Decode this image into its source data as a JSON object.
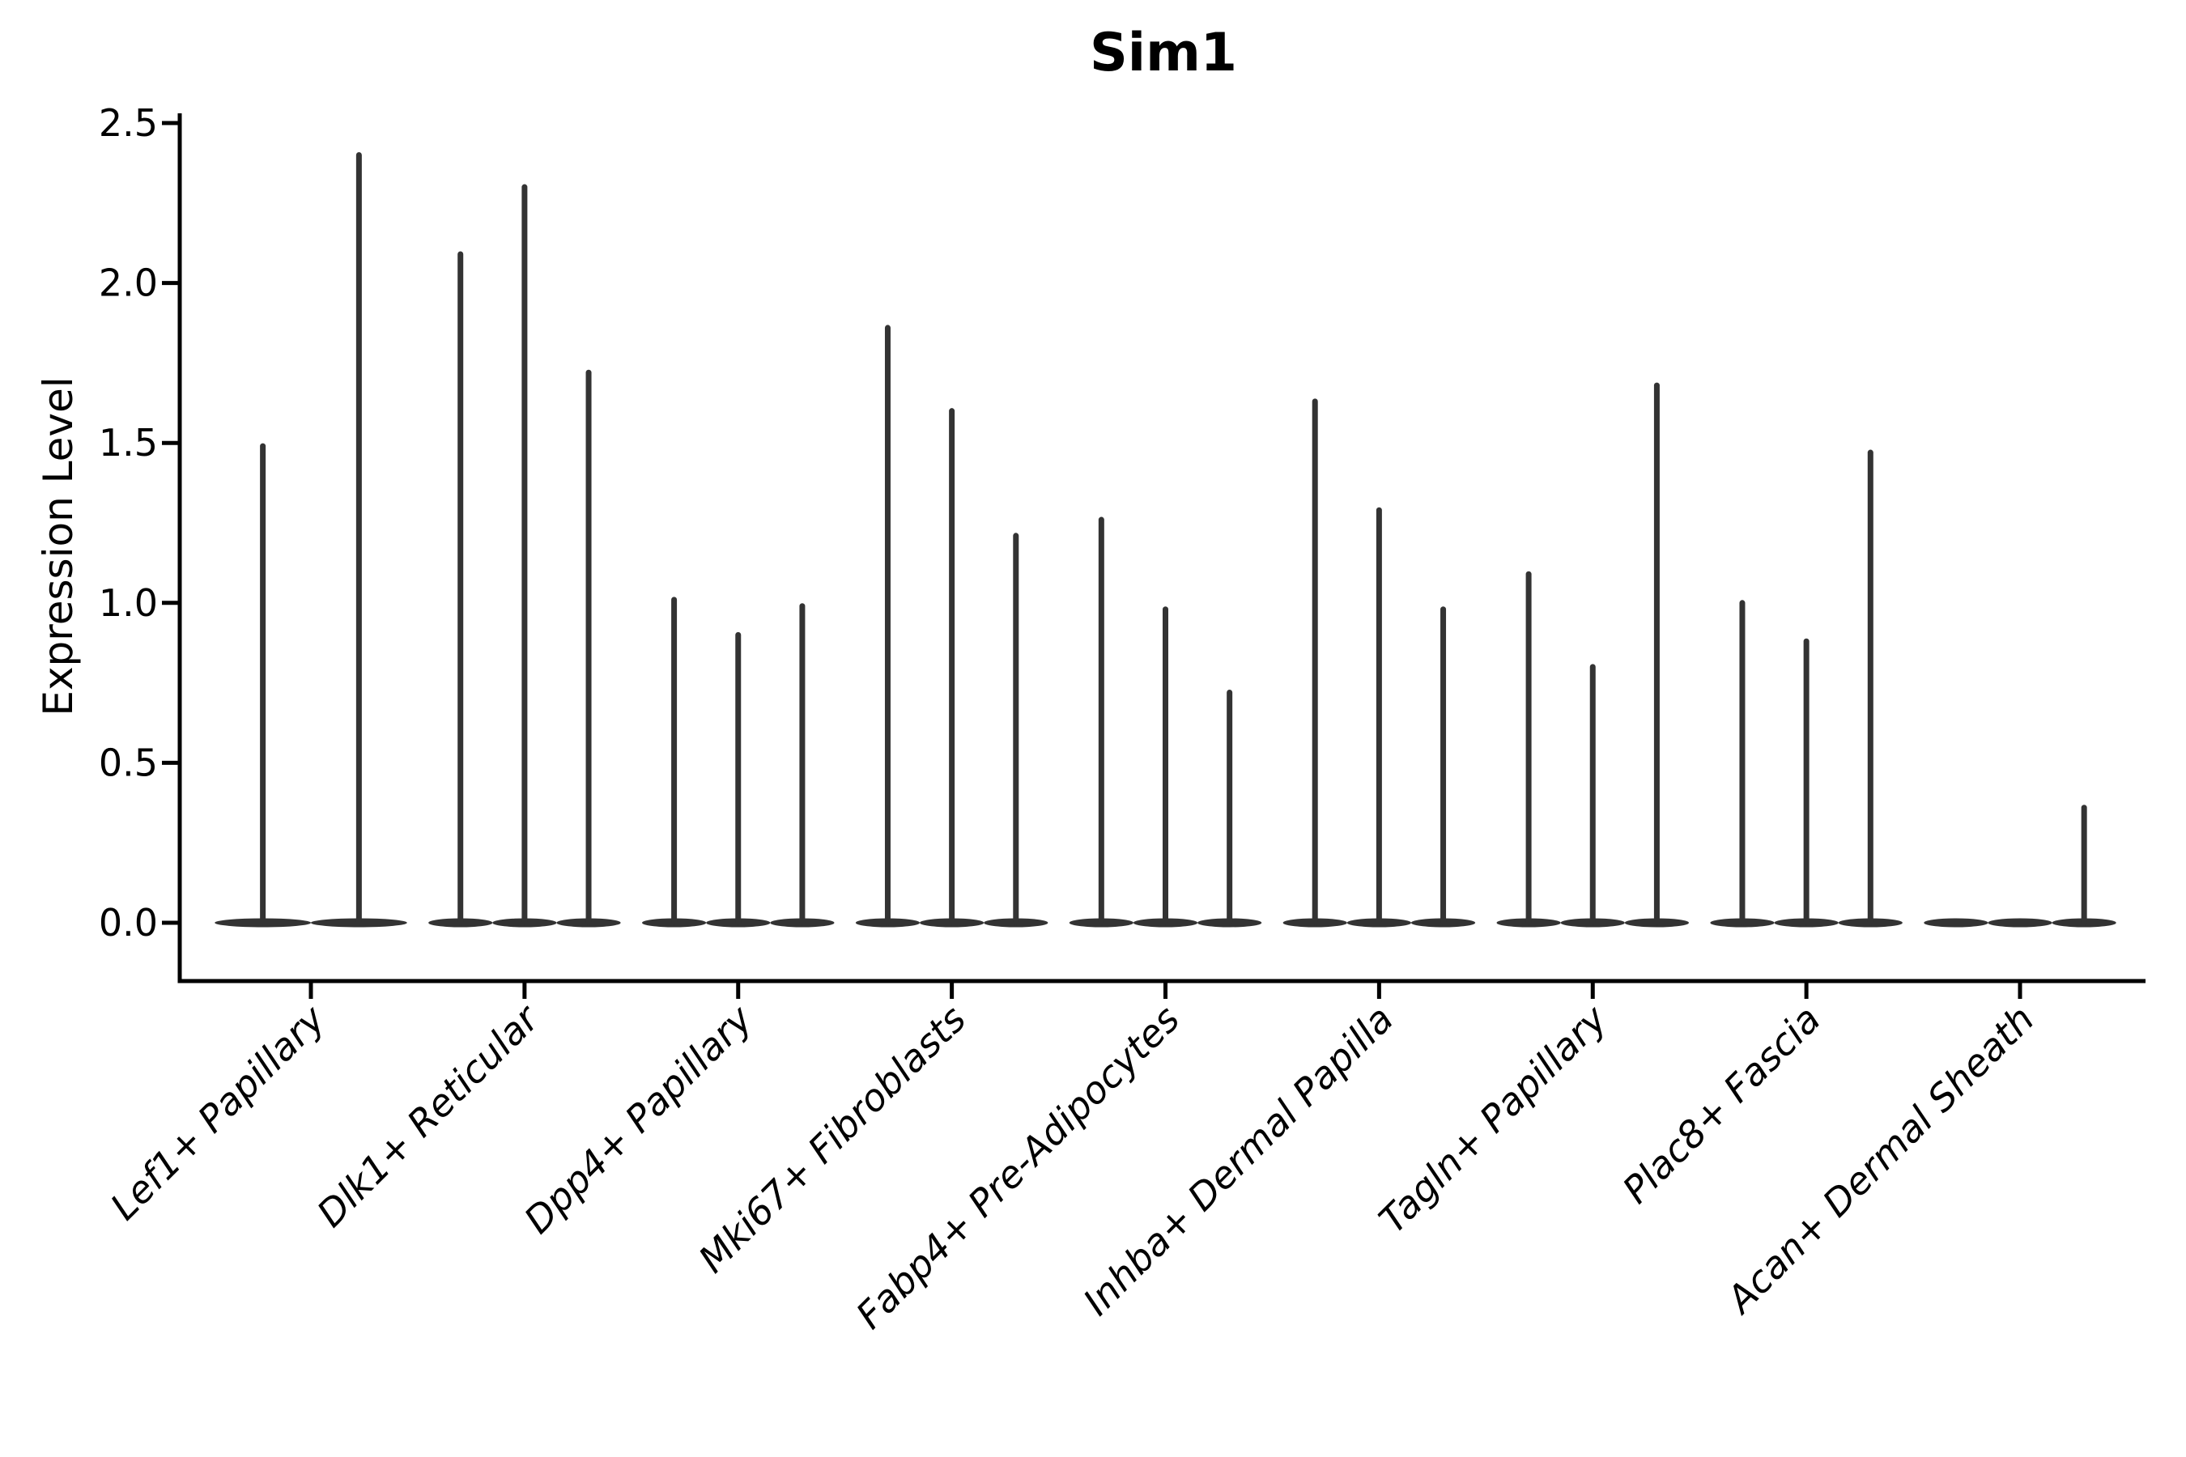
{
  "chart_data": {
    "type": "violin",
    "title": "Sim1",
    "xlabel": "",
    "ylabel": "Expression Level",
    "yticks": [
      "0.0",
      "0.5",
      "1.0",
      "1.5",
      "2.0",
      "2.5"
    ],
    "ytick_values": [
      0.0,
      0.5,
      1.0,
      1.5,
      2.0,
      2.5
    ],
    "ylim": [
      -0.18,
      2.56
    ],
    "grid": false,
    "legend": null,
    "violin_color": "#333333",
    "axis_color": "#000000",
    "categories": [
      "Lef1+ Papillary",
      "Dlk1+ Reticular",
      "Dpp4+ Papillary",
      "Mki67+ Fibroblasts",
      "Fabp4+ Pre-Adipocytes",
      "Inhba+ Dermal Papilla",
      "Tagln+ Papillary",
      "Plac8+ Fascia",
      "Acan+ Dermal Sheath"
    ],
    "series": [
      {
        "category": "Lef1+ Papillary",
        "violin_maxima": [
          1.49,
          2.4
        ]
      },
      {
        "category": "Dlk1+ Reticular",
        "violin_maxima": [
          2.09,
          2.3,
          1.72
        ]
      },
      {
        "category": "Dpp4+ Papillary",
        "violin_maxima": [
          1.01,
          0.9,
          0.99
        ]
      },
      {
        "category": "Mki67+ Fibroblasts",
        "violin_maxima": [
          1.86,
          1.6,
          1.21
        ]
      },
      {
        "category": "Fabp4+ Pre-Adipocytes",
        "violin_maxima": [
          1.26,
          0.98,
          0.72
        ]
      },
      {
        "category": "Inhba+ Dermal Papilla",
        "violin_maxima": [
          1.63,
          1.29,
          0.98
        ]
      },
      {
        "category": "Tagln+ Papillary",
        "violin_maxima": [
          1.09,
          0.8,
          1.68
        ]
      },
      {
        "category": "Plac8+ Fascia",
        "violin_maxima": [
          1.0,
          0.88,
          1.47
        ]
      },
      {
        "category": "Acan+ Dermal Sheath",
        "violin_maxima": [
          0.0,
          0.0,
          0.36
        ]
      }
    ]
  }
}
